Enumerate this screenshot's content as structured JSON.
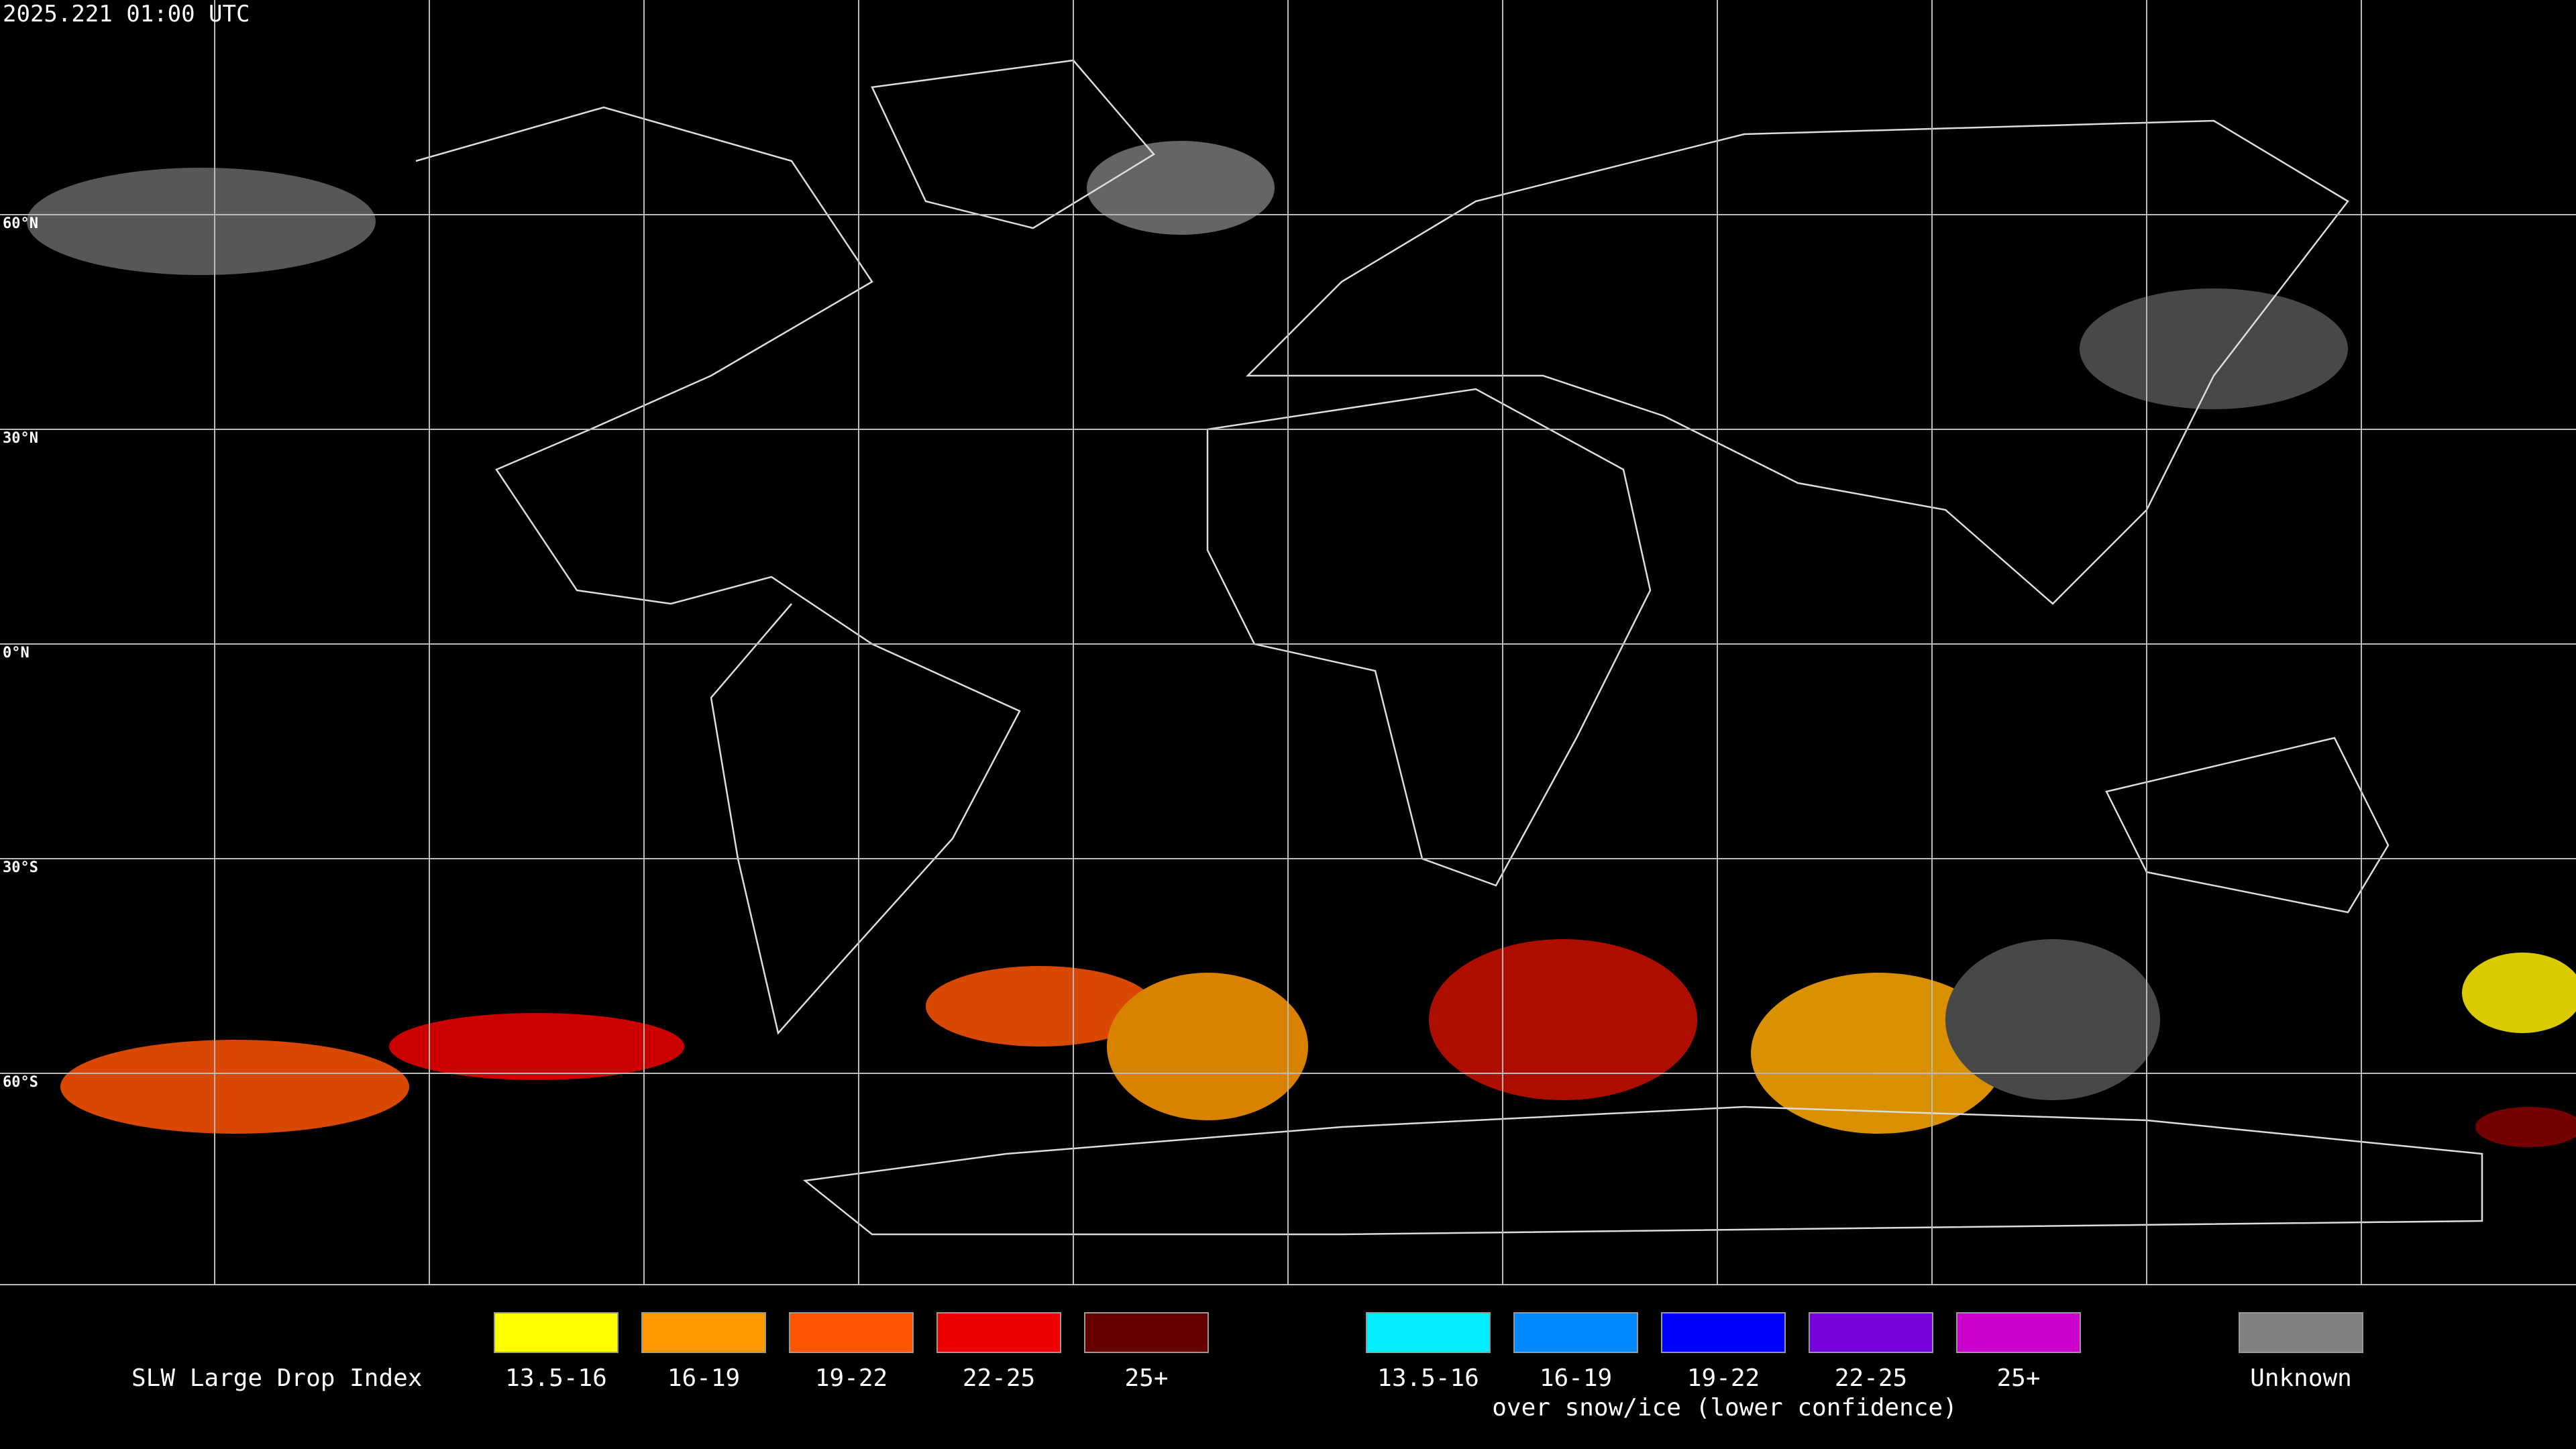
{
  "title": "2025.221 01:00 UTC",
  "latitude_labels": [
    "60°N",
    "30°N",
    "0°N",
    "30°S",
    "60°S"
  ],
  "legend": {
    "title": "SLW Large Drop Index",
    "items": [
      {
        "label": "13.5-16",
        "color": "#ffff00"
      },
      {
        "label": "16-19",
        "color": "#ff9900"
      },
      {
        "label": "19-22",
        "color": "#ff5500"
      },
      {
        "label": "22-25",
        "color": "#ee0000"
      },
      {
        "label": "25+",
        "color": "#660000"
      }
    ],
    "snow_items": [
      {
        "label": "13.5-16",
        "color": "#00eeff"
      },
      {
        "label": "16-19",
        "color": "#0088ff"
      },
      {
        "label": "19-22",
        "color": "#0000ff"
      },
      {
        "label": "22-25",
        "color": "#7700dd"
      },
      {
        "label": "25+",
        "color": "#cc00cc"
      }
    ],
    "snow_caption": "over snow/ice (lower confidence)",
    "unknown": {
      "label": "Unknown",
      "color": "#808080"
    }
  }
}
